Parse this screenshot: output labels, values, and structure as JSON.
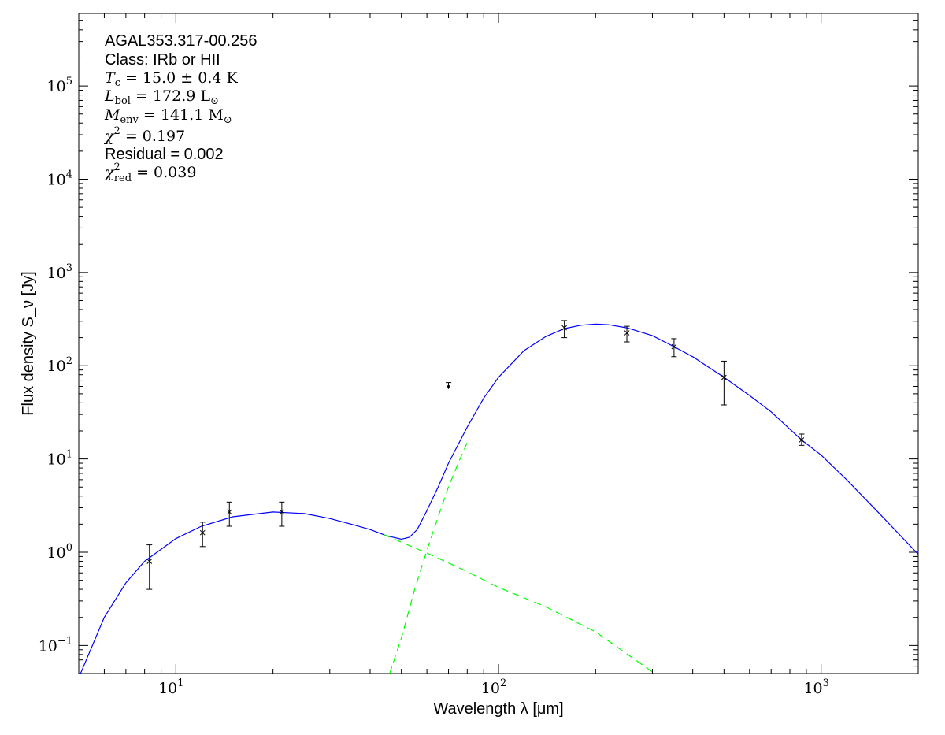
{
  "chart_data": {
    "type": "line",
    "x_scale": "log",
    "y_scale": "log",
    "xlim": [
      5,
      2000
    ],
    "ylim": [
      0.05,
      600000
    ],
    "xlabel": "Wavelength λ [μm]",
    "ylabel": "Flux density S_ν [Jy]",
    "x_ticks": [
      {
        "value": 10,
        "base": "10",
        "exp": "1"
      },
      {
        "value": 100,
        "base": "10",
        "exp": "2"
      },
      {
        "value": 1000,
        "base": "10",
        "exp": "3"
      }
    ],
    "y_ticks": [
      {
        "value": 0.1,
        "base": "10",
        "exp": "−1"
      },
      {
        "value": 1,
        "base": "10",
        "exp": "0"
      },
      {
        "value": 10,
        "base": "10",
        "exp": "1"
      },
      {
        "value": 100,
        "base": "10",
        "exp": "2"
      },
      {
        "value": 1000,
        "base": "10",
        "exp": "3"
      },
      {
        "value": 10000,
        "base": "10",
        "exp": "4"
      },
      {
        "value": 100000,
        "base": "10",
        "exp": "5"
      }
    ],
    "annotations": {
      "source": "AGAL353.317-00.256",
      "class": "Class: IRb or HII",
      "tc": {
        "sym": "T",
        "sub": "c",
        "rest": " = 15.0 ± 0.4 K"
      },
      "lbol": {
        "sym": "L",
        "sub": "bol",
        "rest": " = 172.9 L",
        "rest_sub": "⊙"
      },
      "menv": {
        "sym": "M",
        "sub": "env",
        "rest": " = 141.1 M",
        "rest_sub": "⊙"
      },
      "chi2": {
        "sym": "χ",
        "sup": "2",
        "rest": " = 0.197"
      },
      "residual": "Residual = 0.002",
      "chi2red": {
        "sym": "χ",
        "sup": "2",
        "sub": "red",
        "rest": " = 0.039"
      }
    },
    "series": [
      {
        "kind": "points",
        "color": "#000000",
        "points": [
          {
            "x": 8.28,
            "y": 0.8,
            "yerr_low": 0.4,
            "yerr_high": 1.2
          },
          {
            "x": 12.1,
            "y": 1.62,
            "yerr_low": 1.15,
            "yerr_high": 2.1
          },
          {
            "x": 14.65,
            "y": 2.7,
            "yerr_low": 1.9,
            "yerr_high": 3.45
          },
          {
            "x": 21.3,
            "y": 2.7,
            "yerr_low": 1.9,
            "yerr_high": 3.45
          },
          {
            "x": 160,
            "y": 255,
            "yerr_low": 200,
            "yerr_high": 305
          },
          {
            "x": 250,
            "y": 225,
            "yerr_low": 180,
            "yerr_high": 265
          },
          {
            "x": 350,
            "y": 160,
            "yerr_low": 125,
            "yerr_high": 195
          },
          {
            "x": 500,
            "y": 75,
            "yerr_low": 38,
            "yerr_high": 112
          },
          {
            "x": 870,
            "y": 16,
            "yerr_low": 14,
            "yerr_high": 18.5
          }
        ],
        "upper_limits": [
          {
            "x": 70,
            "y": 66,
            "y_low": 58
          }
        ]
      },
      {
        "kind": "line",
        "style": "solid",
        "color": "#0000ff",
        "points": [
          [
            5,
            0.045
          ],
          [
            6,
            0.2
          ],
          [
            7,
            0.47
          ],
          [
            8,
            0.8
          ],
          [
            10,
            1.4
          ],
          [
            12,
            1.9
          ],
          [
            15,
            2.4
          ],
          [
            20,
            2.7
          ],
          [
            25,
            2.6
          ],
          [
            30,
            2.3
          ],
          [
            35,
            2.0
          ],
          [
            40,
            1.75
          ],
          [
            45,
            1.5
          ],
          [
            50,
            1.38
          ],
          [
            53,
            1.45
          ],
          [
            56,
            1.75
          ],
          [
            60,
            2.8
          ],
          [
            65,
            5.0
          ],
          [
            70,
            9.0
          ],
          [
            80,
            22
          ],
          [
            90,
            45
          ],
          [
            100,
            75
          ],
          [
            120,
            145
          ],
          [
            140,
            205
          ],
          [
            160,
            250
          ],
          [
            180,
            272
          ],
          [
            200,
            280
          ],
          [
            220,
            275
          ],
          [
            250,
            255
          ],
          [
            300,
            210
          ],
          [
            350,
            160
          ],
          [
            400,
            125
          ],
          [
            500,
            75
          ],
          [
            600,
            48
          ],
          [
            700,
            32
          ],
          [
            870,
            16
          ],
          [
            1000,
            11
          ],
          [
            1200,
            6.0
          ],
          [
            1500,
            2.7
          ],
          [
            2000,
            0.95
          ]
        ]
      },
      {
        "kind": "line",
        "style": "dashed",
        "color": "#00ff00",
        "points": [
          [
            44,
            1.55
          ],
          [
            60,
            0.98
          ],
          [
            80,
            0.62
          ],
          [
            100,
            0.42
          ],
          [
            140,
            0.26
          ],
          [
            200,
            0.14
          ],
          [
            300,
            0.052
          ]
        ]
      },
      {
        "kind": "line",
        "style": "dashed",
        "color": "#00ff00",
        "points": [
          [
            46,
            0.05
          ],
          [
            50,
            0.12
          ],
          [
            55,
            0.4
          ],
          [
            60,
            1.05
          ],
          [
            65,
            2.4
          ],
          [
            70,
            5.0
          ],
          [
            75,
            9.0
          ],
          [
            80,
            15
          ]
        ]
      }
    ]
  }
}
